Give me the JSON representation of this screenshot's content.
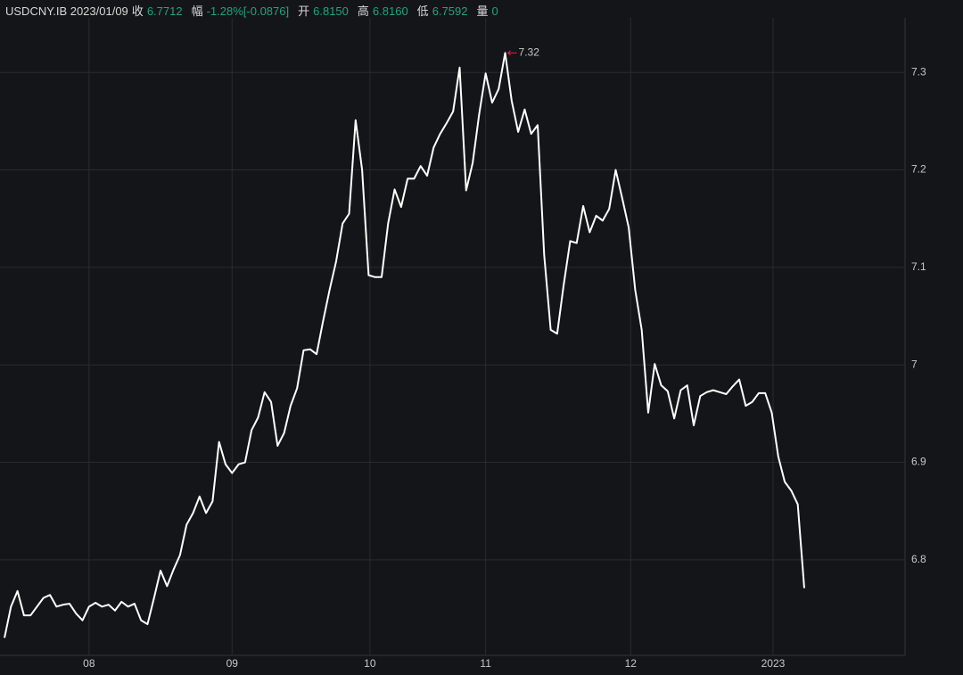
{
  "header": {
    "symbol": "USDCNY.IB 2023/01/09",
    "items": [
      {
        "label": "收",
        "value": "6.7712"
      },
      {
        "label": "幅",
        "value": "-1.28%[-0.0876]"
      },
      {
        "label": "开",
        "value": "6.8150"
      },
      {
        "label": "高",
        "value": "6.8160"
      },
      {
        "label": "低",
        "value": "6.7592"
      },
      {
        "label": "量",
        "value": "0"
      }
    ]
  },
  "chart_data": {
    "type": "line",
    "color": "#ffffff",
    "grid": true,
    "annotation": "7.32",
    "annotation_color": "#e8213a",
    "x": [
      0,
      1,
      2,
      3,
      4,
      5,
      6,
      7,
      8,
      9,
      10,
      11,
      12,
      13,
      14,
      15,
      16,
      17,
      18,
      19,
      20,
      21,
      22,
      23,
      24,
      25,
      26,
      27,
      28,
      29,
      30,
      31,
      32,
      33,
      34,
      35,
      36,
      37,
      38,
      39,
      40,
      41,
      42,
      43,
      44,
      45,
      46,
      47,
      48,
      49,
      50,
      51,
      52,
      53,
      54,
      55,
      56,
      57,
      58,
      59,
      60,
      61,
      62,
      63,
      64,
      65,
      66,
      67,
      68,
      69,
      70,
      71,
      72,
      73,
      74,
      75,
      76,
      77,
      78,
      79,
      80,
      81,
      82,
      83,
      84,
      85,
      86,
      87,
      88,
      89,
      90,
      91,
      92,
      93,
      94,
      95,
      96,
      97,
      98,
      99,
      100,
      101,
      102,
      103,
      104,
      105,
      106,
      107,
      108,
      109,
      110,
      111,
      112,
      113,
      114,
      115,
      116,
      117,
      118,
      119,
      120,
      121,
      122,
      123
    ],
    "values": [
      6.72,
      6.752,
      6.768,
      6.743,
      6.743,
      6.752,
      6.761,
      6.764,
      6.752,
      6.754,
      6.755,
      6.745,
      6.738,
      6.752,
      6.756,
      6.752,
      6.754,
      6.748,
      6.757,
      6.752,
      6.755,
      6.738,
      6.734,
      6.761,
      6.789,
      6.773,
      6.79,
      6.805,
      6.836,
      6.848,
      6.865,
      6.848,
      6.86,
      6.921,
      6.898,
      6.889,
      6.898,
      6.9,
      6.933,
      6.946,
      6.972,
      6.962,
      6.917,
      6.93,
      6.958,
      6.976,
      7.015,
      7.016,
      7.011,
      7.045,
      7.077,
      7.106,
      7.145,
      7.155,
      7.251,
      7.2,
      7.092,
      7.09,
      7.09,
      7.145,
      7.18,
      7.162,
      7.191,
      7.191,
      7.204,
      7.194,
      7.223,
      7.237,
      7.248,
      7.26,
      7.305,
      7.179,
      7.207,
      7.257,
      7.299,
      7.269,
      7.283,
      7.32,
      7.271,
      7.239,
      7.262,
      7.237,
      7.246,
      7.113,
      7.036,
      7.032,
      7.082,
      7.127,
      7.125,
      7.163,
      7.136,
      7.153,
      7.148,
      7.16,
      7.2,
      7.171,
      7.141,
      7.077,
      7.036,
      6.951,
      7.001,
      6.979,
      6.973,
      6.945,
      6.974,
      6.979,
      6.938,
      6.968,
      6.972,
      6.974,
      6.972,
      6.97,
      6.978,
      6.985,
      6.958,
      6.962,
      6.971,
      6.971,
      6.951,
      6.906,
      6.88,
      6.871,
      6.857,
      6.771
    ],
    "xlim": [
      -0.69,
      138.5
    ],
    "xticks": [
      {
        "value": 13.0,
        "label": "08"
      },
      {
        "value": 35.0,
        "label": "09"
      },
      {
        "value": 56.2,
        "label": "10"
      },
      {
        "value": 74.0,
        "label": "11"
      },
      {
        "value": 96.3,
        "label": "12"
      },
      {
        "value": 118.2,
        "label": "2023",
        "color": "#f0a030"
      }
    ],
    "ylim": [
      6.702,
      7.356
    ],
    "yticks": [
      6.8,
      6.9,
      7,
      7.1,
      7.2,
      7.3
    ]
  }
}
